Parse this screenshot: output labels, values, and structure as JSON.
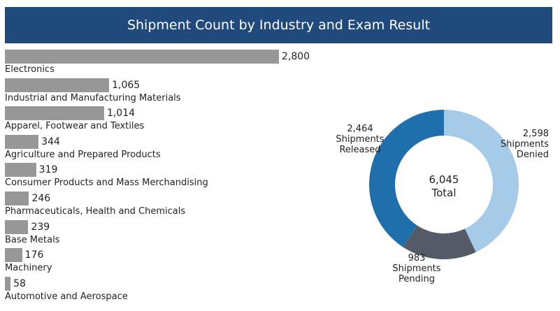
{
  "header": {
    "title": "Shipment Count by Industry and Exam Result"
  },
  "chart_data": [
    {
      "type": "bar",
      "orientation": "horizontal",
      "categories": [
        "Electronics",
        "Industrial and Manufacturing Materials",
        "Apparel, Footwear and Textiles",
        "Agriculture and Prepared Products",
        "Consumer Products and Mass Merchandising",
        "Pharmaceuticals, Health and Chemicals",
        "Base Metals",
        "Machinery",
        "Automotive and Aerospace"
      ],
      "values": [
        2800,
        1065,
        1014,
        344,
        319,
        246,
        239,
        176,
        58
      ],
      "value_labels": [
        "2,800",
        "1,065",
        "1,014",
        "344",
        "319",
        "246",
        "239",
        "176",
        "58"
      ],
      "color": "#979797"
    },
    {
      "type": "pie",
      "style": "donut",
      "center": {
        "value": "6,045",
        "label": "Total"
      },
      "slices": [
        {
          "name": "Shipments Denied",
          "value": 2598,
          "value_label": "2,598",
          "label_lines": [
            "Shipments",
            "Denied"
          ],
          "color": "#a6cbe8"
        },
        {
          "name": "Shipments Pending",
          "value": 983,
          "value_label": "983",
          "label_lines": [
            "Shipments",
            "Pending"
          ],
          "color": "#535b68"
        },
        {
          "name": "Shipments Released",
          "value": 2464,
          "value_label": "2,464",
          "label_lines": [
            "Shipments",
            "Released"
          ],
          "color": "#1f6fac"
        }
      ]
    }
  ]
}
